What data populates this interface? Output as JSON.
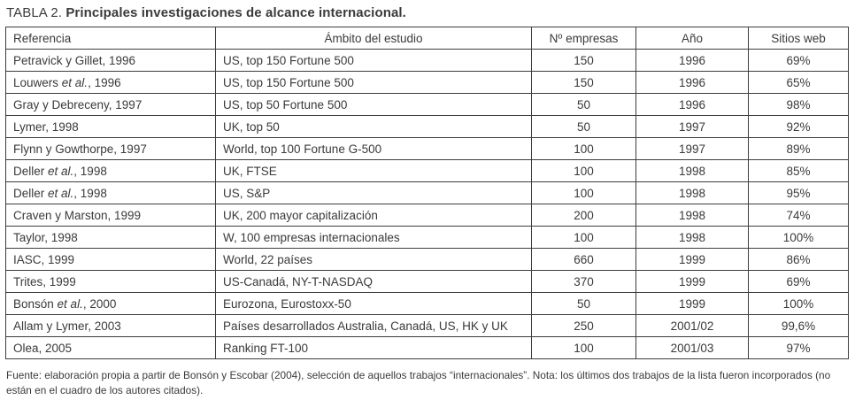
{
  "title": {
    "prefix": "TABLA 2.",
    "rest": " Principales investigaciones de alcance internacional."
  },
  "table": {
    "headers": {
      "referencia": "Referencia",
      "ambito": "Ámbito del estudio",
      "empresas": "Nº empresas",
      "ano": "Año",
      "sitios": "Sitios web"
    },
    "rows": [
      {
        "ref_pre": "Petravick y Gillet, 1996",
        "ref_italic": "",
        "ref_post": "",
        "ambito": "US, top 150 Fortune 500",
        "empresas": "150",
        "ano": "1996",
        "sitios": "69%"
      },
      {
        "ref_pre": "Louwers ",
        "ref_italic": "et al.",
        "ref_post": ", 1996",
        "ambito": "US, top 150 Fortune 500",
        "empresas": "150",
        "ano": "1996",
        "sitios": "65%"
      },
      {
        "ref_pre": "Gray y Debreceny, 1997",
        "ref_italic": "",
        "ref_post": "",
        "ambito": "US, top 50 Fortune 500",
        "empresas": "50",
        "ano": "1996",
        "sitios": "98%"
      },
      {
        "ref_pre": "Lymer, 1998",
        "ref_italic": "",
        "ref_post": "",
        "ambito": "UK, top 50",
        "empresas": "50",
        "ano": "1997",
        "sitios": "92%"
      },
      {
        "ref_pre": "Flynn y Gowthorpe,  1997",
        "ref_italic": "",
        "ref_post": "",
        "ambito": "World, top 100 Fortune G-500",
        "empresas": "100",
        "ano": "1997",
        "sitios": "89%"
      },
      {
        "ref_pre": "Deller ",
        "ref_italic": "et al.",
        "ref_post": ", 1998",
        "ambito": "UK, FTSE",
        "empresas": "100",
        "ano": "1998",
        "sitios": "85%"
      },
      {
        "ref_pre": "Deller ",
        "ref_italic": "et al.",
        "ref_post": ", 1998",
        "ambito": "US, S&P",
        "empresas": "100",
        "ano": "1998",
        "sitios": "95%"
      },
      {
        "ref_pre": "Craven y Marston, 1999",
        "ref_italic": "",
        "ref_post": "",
        "ambito": "UK, 200 mayor capitalización",
        "empresas": "200",
        "ano": "1998",
        "sitios": "74%"
      },
      {
        "ref_pre": "Taylor, 1998",
        "ref_italic": "",
        "ref_post": "",
        "ambito": "W, 100 empresas internacionales",
        "empresas": "100",
        "ano": "1998",
        "sitios": "100%"
      },
      {
        "ref_pre": "IASC, 1999",
        "ref_italic": "",
        "ref_post": "",
        "ambito": "World, 22 países",
        "empresas": "660",
        "ano": "1999",
        "sitios": "86%"
      },
      {
        "ref_pre": "Trites, 1999",
        "ref_italic": "",
        "ref_post": "",
        "ambito": "US-Canadá, NY-T-NASDAQ",
        "empresas": "370",
        "ano": "1999",
        "sitios": "69%"
      },
      {
        "ref_pre": "Bonsón ",
        "ref_italic": "et al.",
        "ref_post": ", 2000",
        "ambito": "Eurozona, Eurostoxx-50",
        "empresas": "50",
        "ano": "1999",
        "sitios": "100%"
      },
      {
        "ref_pre": "Allam y Lymer, 2003",
        "ref_italic": "",
        "ref_post": "",
        "ambito": "Países desarrollados Australia, Canadá, US, HK y UK",
        "empresas": "250",
        "ano": "2001/02",
        "sitios": "99,6%"
      },
      {
        "ref_pre": "Olea, 2005",
        "ref_italic": "",
        "ref_post": "",
        "ambito": "Ranking FT-100",
        "empresas": "100",
        "ano": "2001/03",
        "sitios": "97%"
      }
    ]
  },
  "footer": {
    "text": "Fuente: elaboración propia a partir de Bonsón y Escobar (2004), selección de aquellos trabajos “internacionales”. Nota: los últimos dos trabajos de la lista fueron incorporados (no están en el cuadro de los autores citados)."
  },
  "colors": {
    "text": "#3a3a3a",
    "border": "#3d3d3d",
    "background": "#ffffff"
  }
}
